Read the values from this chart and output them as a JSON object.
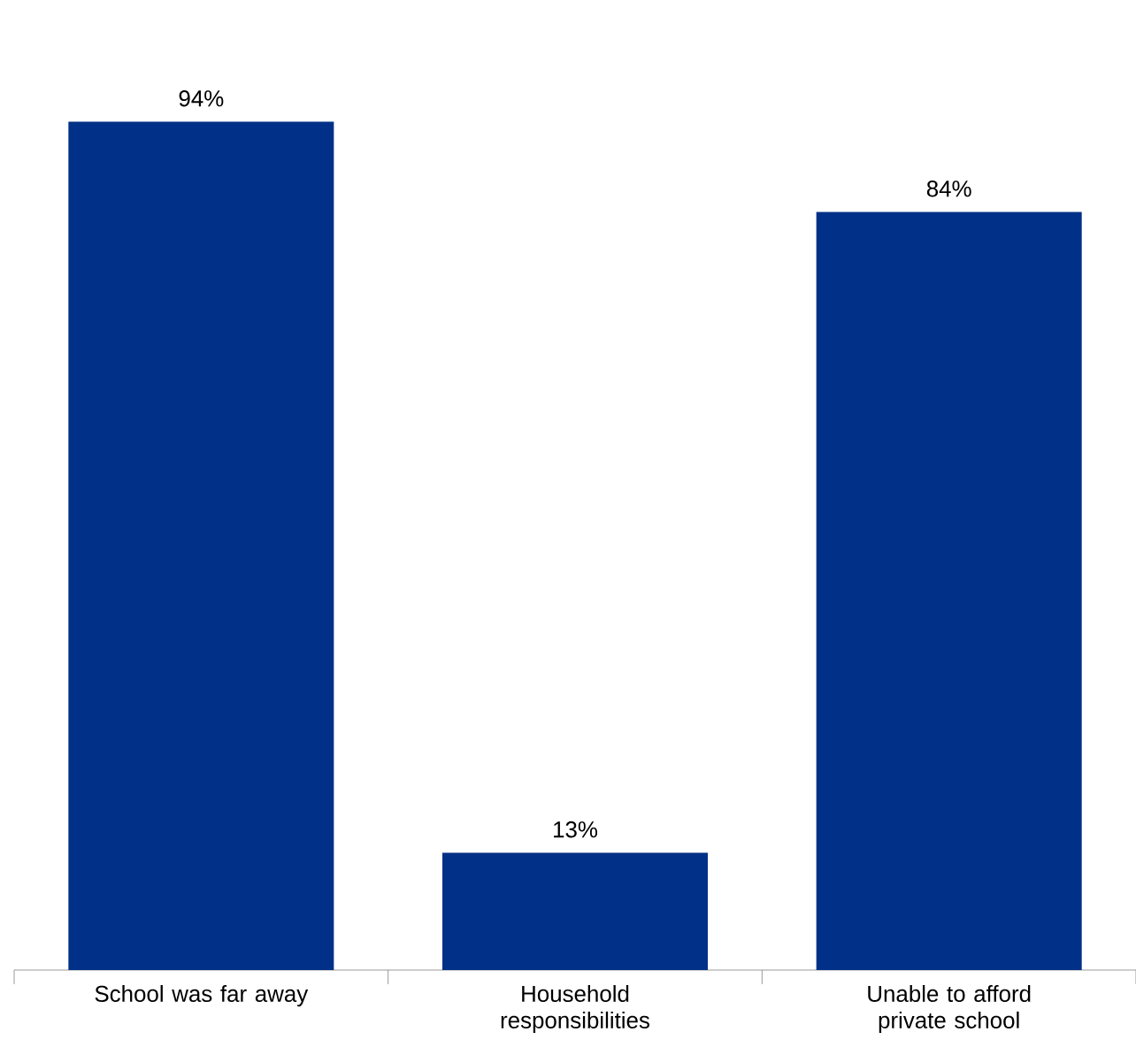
{
  "chart_data": {
    "type": "bar",
    "categories": [
      "School was far away",
      "Household responsibilities",
      "Unable to afford private school"
    ],
    "values": [
      94,
      13,
      84
    ],
    "value_labels": [
      "94%",
      "13%",
      "84%"
    ],
    "color": "#003087"
  }
}
